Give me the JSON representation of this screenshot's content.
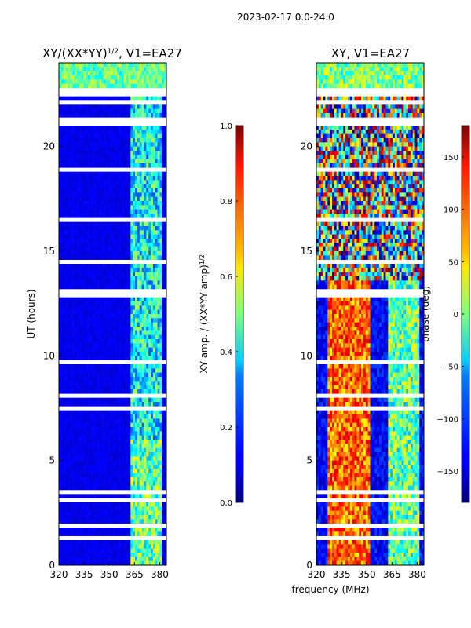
{
  "suptitle": "2023-02-17 0.0-24.0",
  "chart_data": [
    {
      "type": "heatmap",
      "title": "XY/(XX*YY)",
      "title_exp": "1/2",
      "title_suffix": ", V1=EA27",
      "xlabel": "",
      "ylabel": "UT (hours)",
      "xlim": [
        320,
        384
      ],
      "ylim": [
        0,
        24
      ],
      "xticks": [
        320,
        335,
        350,
        365,
        380
      ],
      "yticks": [
        0,
        5,
        10,
        15,
        20
      ],
      "xticklabels": [
        "320",
        "335",
        "350",
        "365",
        "380"
      ],
      "yticklabels": [
        "0",
        "5",
        "10",
        "15",
        "20"
      ],
      "colorbar": {
        "label": "XY amp. / (XX*YY amp)",
        "label_exp": "1/2",
        "range": [
          0.0,
          1.0
        ],
        "ticks": [
          0.0,
          0.2,
          0.4,
          0.6,
          0.8,
          1.0
        ],
        "ticklabels": [
          "0.0",
          "0.2",
          "0.4",
          "0.6",
          "0.8",
          "1.0"
        ]
      },
      "colormap": "jet",
      "grid": false
    },
    {
      "type": "heatmap",
      "title": "XY, V1=EA27",
      "xlabel": "frequency (MHz)",
      "ylabel": "",
      "xlim": [
        320,
        384
      ],
      "ylim": [
        0,
        24
      ],
      "xticks": [
        320,
        335,
        350,
        365,
        380
      ],
      "yticks": [
        0,
        5,
        10,
        15,
        20
      ],
      "xticklabels": [
        "320",
        "335",
        "350",
        "365",
        "380"
      ],
      "yticklabels": [
        "0",
        "5",
        "10",
        "15",
        "20"
      ],
      "colorbar": {
        "label": "phase (deg)",
        "range": [
          -180,
          180
        ],
        "ticks": [
          -150,
          -100,
          -50,
          0,
          50,
          100,
          150
        ],
        "ticklabels": [
          "−150",
          "−100",
          "−50",
          "0",
          "50",
          "100",
          "150"
        ]
      },
      "colormap": "jet",
      "grid": false
    }
  ]
}
